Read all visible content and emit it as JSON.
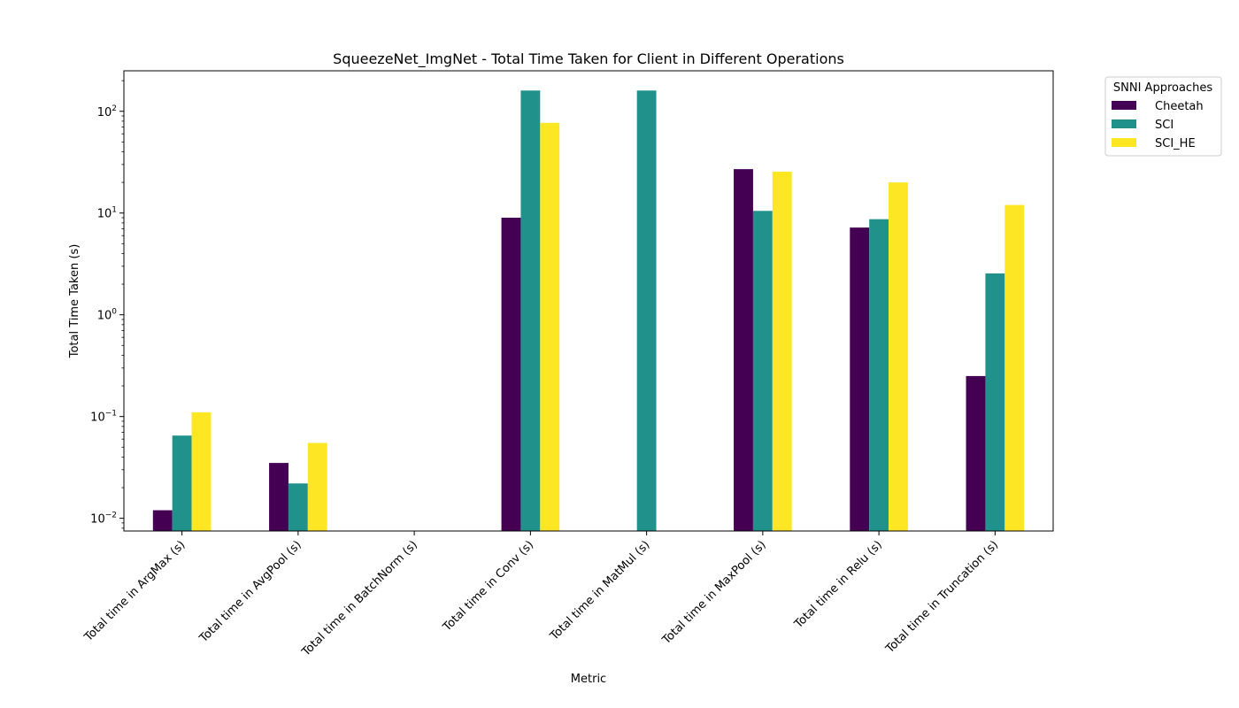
{
  "chart_data": {
    "type": "bar",
    "title": "SqueezeNet_ImgNet - Total Time Taken for Client in Different Operations",
    "xlabel": "Metric",
    "ylabel": "Total Time Taken (s)",
    "yscale": "log",
    "ylim": [
      0.0075,
      250
    ],
    "yticks": [
      {
        "value": 0.01,
        "base": "10",
        "exp": "−2"
      },
      {
        "value": 0.1,
        "base": "10",
        "exp": "−1"
      },
      {
        "value": 1,
        "base": "10",
        "exp": "0"
      },
      {
        "value": 10,
        "base": "10",
        "exp": "1"
      },
      {
        "value": 100,
        "base": "10",
        "exp": "2"
      }
    ],
    "categories": [
      "Total time in ArgMax (s)",
      "Total time in AvgPool (s)",
      "Total time in BatchNorm (s)",
      "Total time in Conv (s)",
      "Total time in MatMul (s)",
      "Total time in MaxPool (s)",
      "Total time in Relu (s)",
      "Total time in Truncation (s)"
    ],
    "series": [
      {
        "name": "Cheetah",
        "color": "#440154",
        "values": [
          0.012,
          0.035,
          null,
          9.0,
          null,
          27.0,
          7.2,
          0.25
        ]
      },
      {
        "name": "SCI",
        "color": "#21918c",
        "values": [
          0.065,
          0.022,
          null,
          160.0,
          160.0,
          10.5,
          8.7,
          2.55
        ]
      },
      {
        "name": "SCI_HE",
        "color": "#fde725",
        "values": [
          0.11,
          0.055,
          null,
          77.0,
          null,
          25.5,
          20.0,
          12.0
        ]
      }
    ],
    "legend": {
      "title": "SNNI Approaches",
      "position": "outside-top-right"
    },
    "grid": false
  }
}
